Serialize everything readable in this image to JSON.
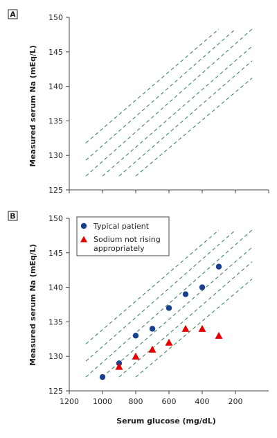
{
  "chart_data": [
    {
      "panel": "A",
      "type": "line",
      "ylabel": "Measured serum Na (mEq/L)",
      "ylim": [
        125,
        150
      ],
      "yticks": [
        125,
        130,
        135,
        140,
        145,
        150
      ],
      "xlim": [
        1200,
        0
      ],
      "reference_lines": [
        {
          "from": [
            1100,
            131.8
          ],
          "to": [
            300,
            148.3
          ]
        },
        {
          "from": [
            1100,
            129.3
          ],
          "to": [
            200,
            148.3
          ]
        },
        {
          "from": [
            1100,
            127.0
          ],
          "to": [
            100,
            148.3
          ]
        },
        {
          "from": [
            1000,
            127.0
          ],
          "to": [
            100,
            145.8
          ]
        },
        {
          "from": [
            900,
            127.0
          ],
          "to": [
            100,
            143.7
          ]
        },
        {
          "from": [
            800,
            127.0
          ],
          "to": [
            100,
            141.2
          ]
        }
      ]
    },
    {
      "panel": "B",
      "type": "scatter",
      "xlabel": "Serum glucose (mg/dL)",
      "ylabel": "Measured serum Na (mEq/L)",
      "xlim": [
        1200,
        0
      ],
      "xticks": [
        1200,
        1000,
        800,
        600,
        400,
        200
      ],
      "ylim": [
        125,
        150
      ],
      "yticks": [
        125,
        130,
        135,
        140,
        145,
        150
      ],
      "legend": [
        "Typical patient",
        "Sodium not rising appropriately"
      ],
      "series": [
        {
          "name": "Typical patient",
          "marker": "circle",
          "color": "#1a3f8f",
          "x": [
            1000,
            900,
            800,
            700,
            600,
            500,
            400,
            300
          ],
          "y": [
            127,
            129,
            133,
            134,
            137,
            139,
            140,
            143
          ]
        },
        {
          "name": "Sodium not rising appropriately",
          "marker": "triangle",
          "color": "#e60000",
          "x": [
            900,
            800,
            700,
            600,
            500,
            400,
            300
          ],
          "y": [
            128.5,
            130,
            131,
            132,
            134,
            134,
            133
          ]
        }
      ],
      "reference_lines": [
        {
          "from": [
            1100,
            131.8
          ],
          "to": [
            300,
            148.3
          ]
        },
        {
          "from": [
            1100,
            129.3
          ],
          "to": [
            200,
            148.3
          ]
        },
        {
          "from": [
            1100,
            127.0
          ],
          "to": [
            100,
            148.3
          ]
        },
        {
          "from": [
            1000,
            127.0
          ],
          "to": [
            100,
            145.8
          ]
        },
        {
          "from": [
            900,
            127.0
          ],
          "to": [
            100,
            143.7
          ]
        },
        {
          "from": [
            800,
            127.0
          ],
          "to": [
            100,
            141.2
          ]
        }
      ]
    }
  ],
  "panels": {
    "a": {
      "label": "A",
      "ylabel": "Measured serum Na (mEq/L)"
    },
    "b": {
      "label": "B",
      "ylabel": "Measured serum Na (mEq/L)",
      "xlabel": "Serum glucose (mg/dL)"
    }
  },
  "legend": {
    "typical": "Typical patient",
    "not_rising_line1": "Sodium not rising",
    "not_rising_line2": "appropriately"
  },
  "colors": {
    "reference_line": "#2e7d4f",
    "typical_marker": "#1a3f8f",
    "not_rising_marker": "#e60000",
    "axis": "#444444"
  }
}
